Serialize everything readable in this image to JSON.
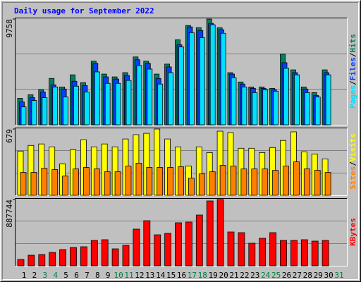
{
  "chart_data": [
    {
      "type": "bar",
      "title": "Daily usage for September 2022",
      "ylim": [
        0,
        9758
      ],
      "yticks": [
        9758
      ],
      "legend_separator": "/",
      "series": [
        {
          "name": "Hits",
          "color": "#008060",
          "values": [
            2440,
            2770,
            3230,
            4280,
            3490,
            4610,
            3890,
            5870,
            4680,
            4420,
            4810,
            6260,
            5870,
            4680,
            5600,
            7840,
            9160,
            8960,
            9758,
            8960,
            4810,
            3950,
            3490,
            3490,
            3360,
            6520,
            5070,
            3490,
            2970,
            5070,
            null
          ]
        },
        {
          "name": "Files",
          "color": "#0040ff",
          "values": [
            2110,
            2500,
            3030,
            3690,
            3300,
            4020,
            3620,
            5670,
            4420,
            4220,
            4550,
            6000,
            5670,
            4280,
            5340,
            7380,
            9030,
            8700,
            9360,
            8770,
            4680,
            3760,
            3360,
            3360,
            3230,
            5730,
            4810,
            3300,
            2700,
            4810,
            null
          ]
        },
        {
          "name": "Pages",
          "color": "#00e0ff",
          "values": [
            1650,
            2240,
            2500,
            3490,
            2570,
            3560,
            3030,
            4880,
            3820,
            3820,
            4090,
            5470,
            5140,
            3760,
            4810,
            7180,
            8500,
            8040,
            9230,
            8440,
            4350,
            3490,
            2970,
            3230,
            3100,
            5210,
            4610,
            2970,
            2570,
            4610,
            null
          ]
        }
      ]
    },
    {
      "type": "bar",
      "ylim": [
        0,
        679
      ],
      "yticks": [
        679
      ],
      "legend_separator": "/",
      "series": [
        {
          "name": "Visits",
          "color": "#ffff00",
          "values": [
            453,
            511,
            526,
            496,
            321,
            467,
            569,
            496,
            526,
            496,
            577,
            621,
            635,
            679,
            577,
            496,
            299,
            496,
            438,
            657,
            642,
            482,
            482,
            438,
            489,
            562,
            650,
            445,
            423,
            372,
            null
          ]
        },
        {
          "name": "Sites",
          "color": "#ff8000",
          "values": [
            234,
            234,
            277,
            263,
            197,
            270,
            285,
            270,
            241,
            241,
            299,
            329,
            285,
            285,
            285,
            292,
            175,
            219,
            241,
            307,
            299,
            270,
            270,
            270,
            256,
            299,
            343,
            270,
            256,
            234,
            null
          ]
        }
      ]
    },
    {
      "type": "bar",
      "ylim": [
        0,
        887744
      ],
      "yticks": [
        887744
      ],
      "categories": [
        "1",
        "2",
        "3",
        "4",
        "5",
        "6",
        "7",
        "8",
        "9",
        "10",
        "11",
        "12",
        "13",
        "14",
        "15",
        "16",
        "17",
        "18",
        "19",
        "20",
        "21",
        "22",
        "23",
        "24",
        "25",
        "26",
        "27",
        "28",
        "29",
        "30",
        "31"
      ],
      "category_colors": [
        "#000000",
        "#000000",
        "#008040",
        "#008040",
        "#000000",
        "#000000",
        "#000000",
        "#000000",
        "#000000",
        "#008040",
        "#008040",
        "#000000",
        "#000000",
        "#000000",
        "#000000",
        "#000000",
        "#008040",
        "#008040",
        "#000000",
        "#000000",
        "#000000",
        "#000000",
        "#000000",
        "#008040",
        "#008040",
        "#000000",
        "#000000",
        "#000000",
        "#000000",
        "#000000",
        "#008040"
      ],
      "series": [
        {
          "name": "KBytes",
          "color": "#ff0000",
          "values": [
            85000,
            141700,
            151100,
            179400,
            217200,
            245500,
            255000,
            340000,
            349400,
            226700,
            273900,
            491100,
            604400,
            415500,
            434400,
            576100,
            585500,
            680000,
            868800,
            887744,
            453300,
            443900,
            302200,
            368300,
            443900,
            340000,
            340000,
            349400,
            330500,
            340000,
            null
          ]
        }
      ]
    }
  ]
}
